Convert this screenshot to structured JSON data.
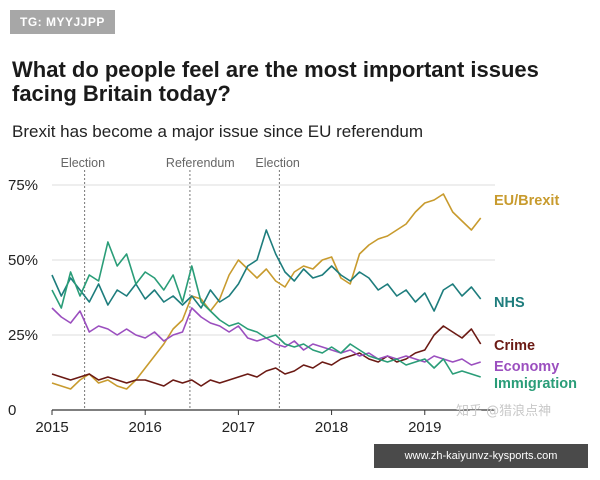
{
  "tag": "TG: MYYJJPP",
  "title": "What do people feel are the most important issues facing Britain today?",
  "subtitle": "Brexit has become a major issue since EU referendum",
  "watermark": "知乎 @猎浪点神",
  "footer_url": "www.zh-kaiyunvz-kysports.com",
  "chart_data": {
    "type": "line",
    "x_ticks": [
      "2015",
      "2016",
      "2017",
      "2018",
      "2019"
    ],
    "y_ticks": [
      "0",
      "25%",
      "50%",
      "75%"
    ],
    "ylim": [
      0,
      75
    ],
    "xlim": [
      2015.0,
      2019.7
    ],
    "events": [
      {
        "label": "Election",
        "x": 2015.35
      },
      {
        "label": "Referendum",
        "x": 2016.48
      },
      {
        "label": "Election",
        "x": 2017.44
      }
    ],
    "series": [
      {
        "name": "EU/Brexit",
        "color": "#c89b2e",
        "x": [
          2015.0,
          2015.1,
          2015.2,
          2015.3,
          2015.4,
          2015.5,
          2015.6,
          2015.7,
          2015.8,
          2015.9,
          2016.0,
          2016.1,
          2016.2,
          2016.3,
          2016.4,
          2016.5,
          2016.6,
          2016.7,
          2016.8,
          2016.9,
          2017.0,
          2017.1,
          2017.2,
          2017.3,
          2017.4,
          2017.5,
          2017.6,
          2017.7,
          2017.8,
          2017.9,
          2018.0,
          2018.1,
          2018.2,
          2018.3,
          2018.4,
          2018.5,
          2018.6,
          2018.7,
          2018.8,
          2018.9,
          2019.0,
          2019.1,
          2019.2,
          2019.3,
          2019.4,
          2019.5,
          2019.6
        ],
        "y": [
          9,
          8,
          7,
          10,
          12,
          9,
          10,
          8,
          7,
          10,
          14,
          18,
          22,
          27,
          30,
          38,
          37,
          33,
          37,
          45,
          50,
          47,
          44,
          47,
          43,
          41,
          46,
          48,
          47,
          50,
          51,
          44,
          42,
          52,
          55,
          57,
          58,
          60,
          62,
          66,
          69,
          70,
          72,
          66,
          63,
          60,
          64
        ]
      },
      {
        "name": "NHS",
        "color": "#1e7d7d",
        "x": [
          2015.0,
          2015.1,
          2015.2,
          2015.3,
          2015.4,
          2015.5,
          2015.6,
          2015.7,
          2015.8,
          2015.9,
          2016.0,
          2016.1,
          2016.2,
          2016.3,
          2016.4,
          2016.5,
          2016.6,
          2016.7,
          2016.8,
          2016.9,
          2017.0,
          2017.1,
          2017.2,
          2017.3,
          2017.4,
          2017.5,
          2017.6,
          2017.7,
          2017.8,
          2017.9,
          2018.0,
          2018.1,
          2018.2,
          2018.3,
          2018.4,
          2018.5,
          2018.6,
          2018.7,
          2018.8,
          2018.9,
          2019.0,
          2019.1,
          2019.2,
          2019.3,
          2019.4,
          2019.5,
          2019.6
        ],
        "y": [
          45,
          38,
          44,
          40,
          36,
          42,
          35,
          40,
          38,
          42,
          37,
          40,
          36,
          38,
          35,
          38,
          34,
          40,
          36,
          38,
          42,
          48,
          50,
          60,
          52,
          46,
          43,
          47,
          44,
          45,
          48,
          45,
          43,
          46,
          44,
          40,
          42,
          38,
          40,
          36,
          39,
          33,
          40,
          42,
          38,
          41,
          37
        ]
      },
      {
        "name": "Crime",
        "color": "#6b1a14",
        "x": [
          2015.0,
          2015.1,
          2015.2,
          2015.3,
          2015.4,
          2015.5,
          2015.6,
          2015.7,
          2015.8,
          2015.9,
          2016.0,
          2016.1,
          2016.2,
          2016.3,
          2016.4,
          2016.5,
          2016.6,
          2016.7,
          2016.8,
          2016.9,
          2017.0,
          2017.1,
          2017.2,
          2017.3,
          2017.4,
          2017.5,
          2017.6,
          2017.7,
          2017.8,
          2017.9,
          2018.0,
          2018.1,
          2018.2,
          2018.3,
          2018.4,
          2018.5,
          2018.6,
          2018.7,
          2018.8,
          2018.9,
          2019.0,
          2019.1,
          2019.2,
          2019.3,
          2019.4,
          2019.5,
          2019.6
        ],
        "y": [
          12,
          11,
          10,
          11,
          12,
          10,
          11,
          10,
          9,
          10,
          10,
          9,
          8,
          10,
          9,
          10,
          8,
          10,
          9,
          10,
          11,
          12,
          11,
          13,
          14,
          12,
          13,
          15,
          14,
          16,
          15,
          17,
          18,
          19,
          17,
          16,
          18,
          16,
          17,
          19,
          20,
          25,
          28,
          26,
          24,
          27,
          22
        ]
      },
      {
        "name": "Economy",
        "color": "#9b4fbf",
        "x": [
          2015.0,
          2015.1,
          2015.2,
          2015.3,
          2015.4,
          2015.5,
          2015.6,
          2015.7,
          2015.8,
          2015.9,
          2016.0,
          2016.1,
          2016.2,
          2016.3,
          2016.4,
          2016.5,
          2016.6,
          2016.7,
          2016.8,
          2016.9,
          2017.0,
          2017.1,
          2017.2,
          2017.3,
          2017.4,
          2017.5,
          2017.6,
          2017.7,
          2017.8,
          2017.9,
          2018.0,
          2018.1,
          2018.2,
          2018.3,
          2018.4,
          2018.5,
          2018.6,
          2018.7,
          2018.8,
          2018.9,
          2019.0,
          2019.1,
          2019.2,
          2019.3,
          2019.4,
          2019.5,
          2019.6
        ],
        "y": [
          34,
          31,
          29,
          33,
          26,
          28,
          27,
          25,
          27,
          25,
          24,
          26,
          23,
          25,
          26,
          34,
          31,
          29,
          28,
          26,
          28,
          24,
          23,
          24,
          22,
          21,
          23,
          20,
          22,
          21,
          20,
          19,
          20,
          18,
          19,
          17,
          18,
          17,
          18,
          17,
          16,
          18,
          17,
          16,
          17,
          15,
          16
        ]
      },
      {
        "name": "Immigration",
        "color": "#2a9d78",
        "x": [
          2015.0,
          2015.1,
          2015.2,
          2015.3,
          2015.4,
          2015.5,
          2015.6,
          2015.7,
          2015.8,
          2015.9,
          2016.0,
          2016.1,
          2016.2,
          2016.3,
          2016.4,
          2016.5,
          2016.6,
          2016.7,
          2016.8,
          2016.9,
          2017.0,
          2017.1,
          2017.2,
          2017.3,
          2017.4,
          2017.5,
          2017.6,
          2017.7,
          2017.8,
          2017.9,
          2018.0,
          2018.1,
          2018.2,
          2018.3,
          2018.4,
          2018.5,
          2018.6,
          2018.7,
          2018.8,
          2018.9,
          2019.0,
          2019.1,
          2019.2,
          2019.3,
          2019.4,
          2019.5,
          2019.6
        ],
        "y": [
          40,
          34,
          46,
          38,
          45,
          43,
          56,
          48,
          52,
          42,
          46,
          44,
          40,
          45,
          36,
          48,
          36,
          33,
          30,
          28,
          29,
          27,
          26,
          24,
          25,
          22,
          21,
          22,
          20,
          19,
          21,
          19,
          22,
          20,
          18,
          17,
          16,
          17,
          15,
          16,
          17,
          14,
          17,
          12,
          13,
          12,
          11
        ]
      }
    ]
  }
}
